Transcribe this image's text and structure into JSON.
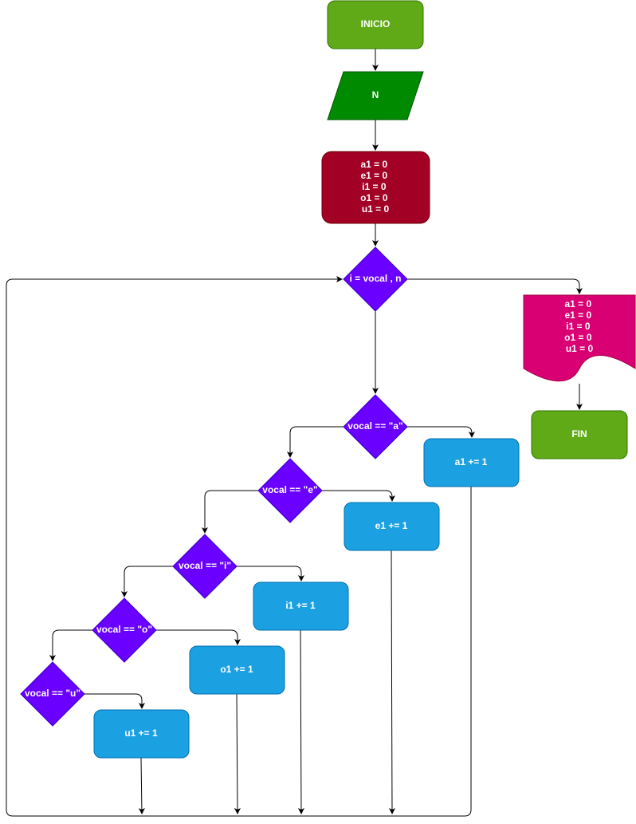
{
  "nodes": {
    "start": "INICIO",
    "input": "N",
    "init": [
      "a1 = 0",
      "e1 = 0",
      "i1 = 0",
      "o1 = 0",
      "u1 = 0"
    ],
    "loop": "i  = vocal , n",
    "cond_a": "vocal == \"a\"",
    "cond_e": "vocal == \"e\"",
    "cond_i": "vocal == \"i\"",
    "cond_o": "vocal == \"o\"",
    "cond_u": "vocal == \"u\"",
    "inc_a": "a1 += 1",
    "inc_e": "e1 += 1",
    "inc_i": "i1 += 1",
    "inc_o": "o1 += 1",
    "inc_u": "u1 += 1",
    "output": [
      "a1 = 0",
      "e1 = 0",
      "i1 = 0",
      "o1 = 0",
      "u1 = 0"
    ],
    "end": "FIN"
  },
  "colors": {
    "terminal": "#60a917",
    "terminal_stroke": "#2d7600",
    "io": "#008a00",
    "io_stroke": "#005700",
    "process_init": "#a20025",
    "process_init_stroke": "#6f0000",
    "decision": "#6a00ff",
    "decision_stroke": "#3700cc",
    "increment": "#1ba1e2",
    "increment_stroke": "#006eaf",
    "document": "#d80073",
    "document_stroke": "#a50040",
    "edge": "#000000"
  }
}
